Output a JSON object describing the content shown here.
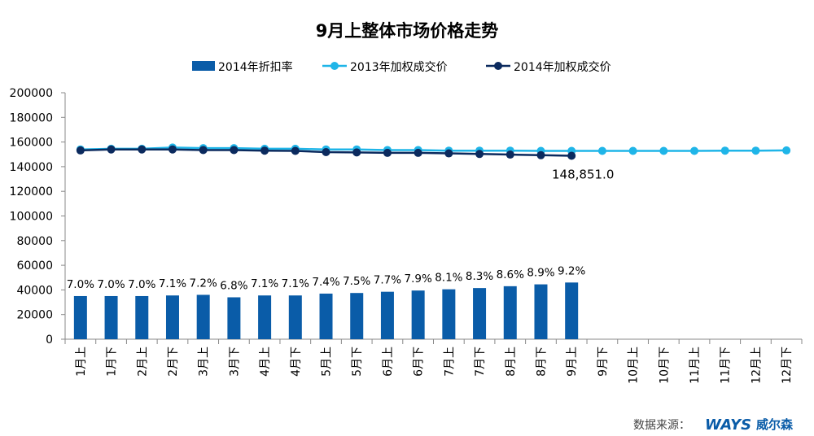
{
  "chart_data": {
    "type": "bar",
    "title": "9月上整体市场价格走势",
    "categories": [
      "1月上",
      "1月下",
      "2月上",
      "2月下",
      "3月上",
      "3月下",
      "4月上",
      "4月下",
      "5月上",
      "5月下",
      "6月上",
      "6月下",
      "7月上",
      "7月下",
      "8月上",
      "8月下",
      "9月上",
      "9月下",
      "10月上",
      "10月下",
      "11月上",
      "11月下",
      "12月上",
      "12月下"
    ],
    "ylim": [
      0,
      200000
    ],
    "yticks": [
      "0",
      "20000",
      "40000",
      "60000",
      "80000",
      "100000",
      "120000",
      "140000",
      "160000",
      "180000",
      "200000"
    ],
    "grid": false,
    "legend_position": "top",
    "bar_series": {
      "name": "2014年折扣率",
      "values": [
        35000,
        35000,
        35000,
        35500,
        36000,
        34000,
        35500,
        35500,
        37000,
        37500,
        38500,
        39500,
        40500,
        41500,
        43000,
        44500,
        46000
      ],
      "labels": [
        "7.0%",
        "7.0%",
        "7.0%",
        "7.1%",
        "7.2%",
        "6.8%",
        "7.1%",
        "7.1%",
        "7.4%",
        "7.5%",
        "7.7%",
        "7.9%",
        "8.1%",
        "8.3%",
        "8.6%",
        "8.9%",
        "9.2%"
      ],
      "color": "#0A5CA8"
    },
    "line_series": [
      {
        "name": "2013年加权成交价",
        "values": [
          154000,
          154500,
          154500,
          155500,
          155000,
          155000,
          154500,
          154500,
          154000,
          154000,
          153500,
          153500,
          153000,
          153000,
          153000,
          152800,
          152800,
          152800,
          152800,
          152800,
          152800,
          153000,
          153000,
          153200
        ],
        "color": "#1FB5E8"
      },
      {
        "name": "2014年加权成交价",
        "values": [
          153200,
          154000,
          154000,
          154000,
          153500,
          153500,
          153000,
          152800,
          151800,
          151600,
          151200,
          151200,
          150800,
          150300,
          149800,
          149300,
          148851
        ],
        "color": "#0B2A5E",
        "end_label": "148,851.0"
      }
    ]
  },
  "footer": {
    "source_label": "数据来源：",
    "brand_name": "WAYS",
    "brand_cn": "威尔森",
    "brand_color": "#0A5CA8"
  }
}
